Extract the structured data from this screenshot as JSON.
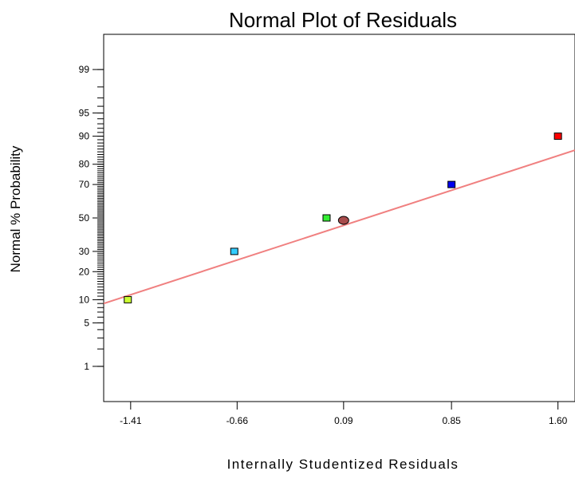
{
  "chart_data": {
    "type": "scatter",
    "title": "Normal Plot of Residuals",
    "xlabel": "Internally Studentized Residuals",
    "ylabel": "Normal % Probability",
    "x_ticks": [
      {
        "value": -1.41,
        "label": "-1.41"
      },
      {
        "value": -0.66,
        "label": "-0.66"
      },
      {
        "value": 0.09,
        "label": "0.09"
      },
      {
        "value": 0.85,
        "label": "0.85"
      },
      {
        "value": 1.6,
        "label": "1.60"
      }
    ],
    "xlim": [
      -1.6,
      1.72
    ],
    "y_scale": "normal-probability",
    "y_ticks": [
      {
        "value": 1,
        "label": "1"
      },
      {
        "value": 5,
        "label": "5"
      },
      {
        "value": 10,
        "label": "10"
      },
      {
        "value": 20,
        "label": "20"
      },
      {
        "value": 30,
        "label": "30"
      },
      {
        "value": 50,
        "label": "50"
      },
      {
        "value": 70,
        "label": "70"
      },
      {
        "value": 80,
        "label": "80"
      },
      {
        "value": 90,
        "label": "90"
      },
      {
        "value": 95,
        "label": "95"
      },
      {
        "value": 99,
        "label": "99"
      }
    ],
    "ylim": [
      0.2,
      99.8
    ],
    "points": [
      {
        "x": -1.43,
        "y": 10,
        "marker": "square",
        "color": "#ccff33"
      },
      {
        "x": -0.68,
        "y": 30,
        "marker": "square",
        "color": "#33ccff"
      },
      {
        "x": -0.03,
        "y": 50,
        "marker": "square",
        "color": "#33ee33"
      },
      {
        "x": 0.09,
        "y": 48.5,
        "marker": "circle",
        "color": "#a84c4c"
      },
      {
        "x": 0.85,
        "y": 70,
        "marker": "square",
        "color": "#0000ee"
      },
      {
        "x": 1.6,
        "y": 90,
        "marker": "square",
        "color": "#ff0000"
      }
    ],
    "fit_line": {
      "color": "#f08080",
      "points": [
        {
          "x": -1.6,
          "y": 9
        },
        {
          "x": 1.72,
          "y": 85.6
        }
      ]
    },
    "grid": false,
    "legend": "none"
  }
}
